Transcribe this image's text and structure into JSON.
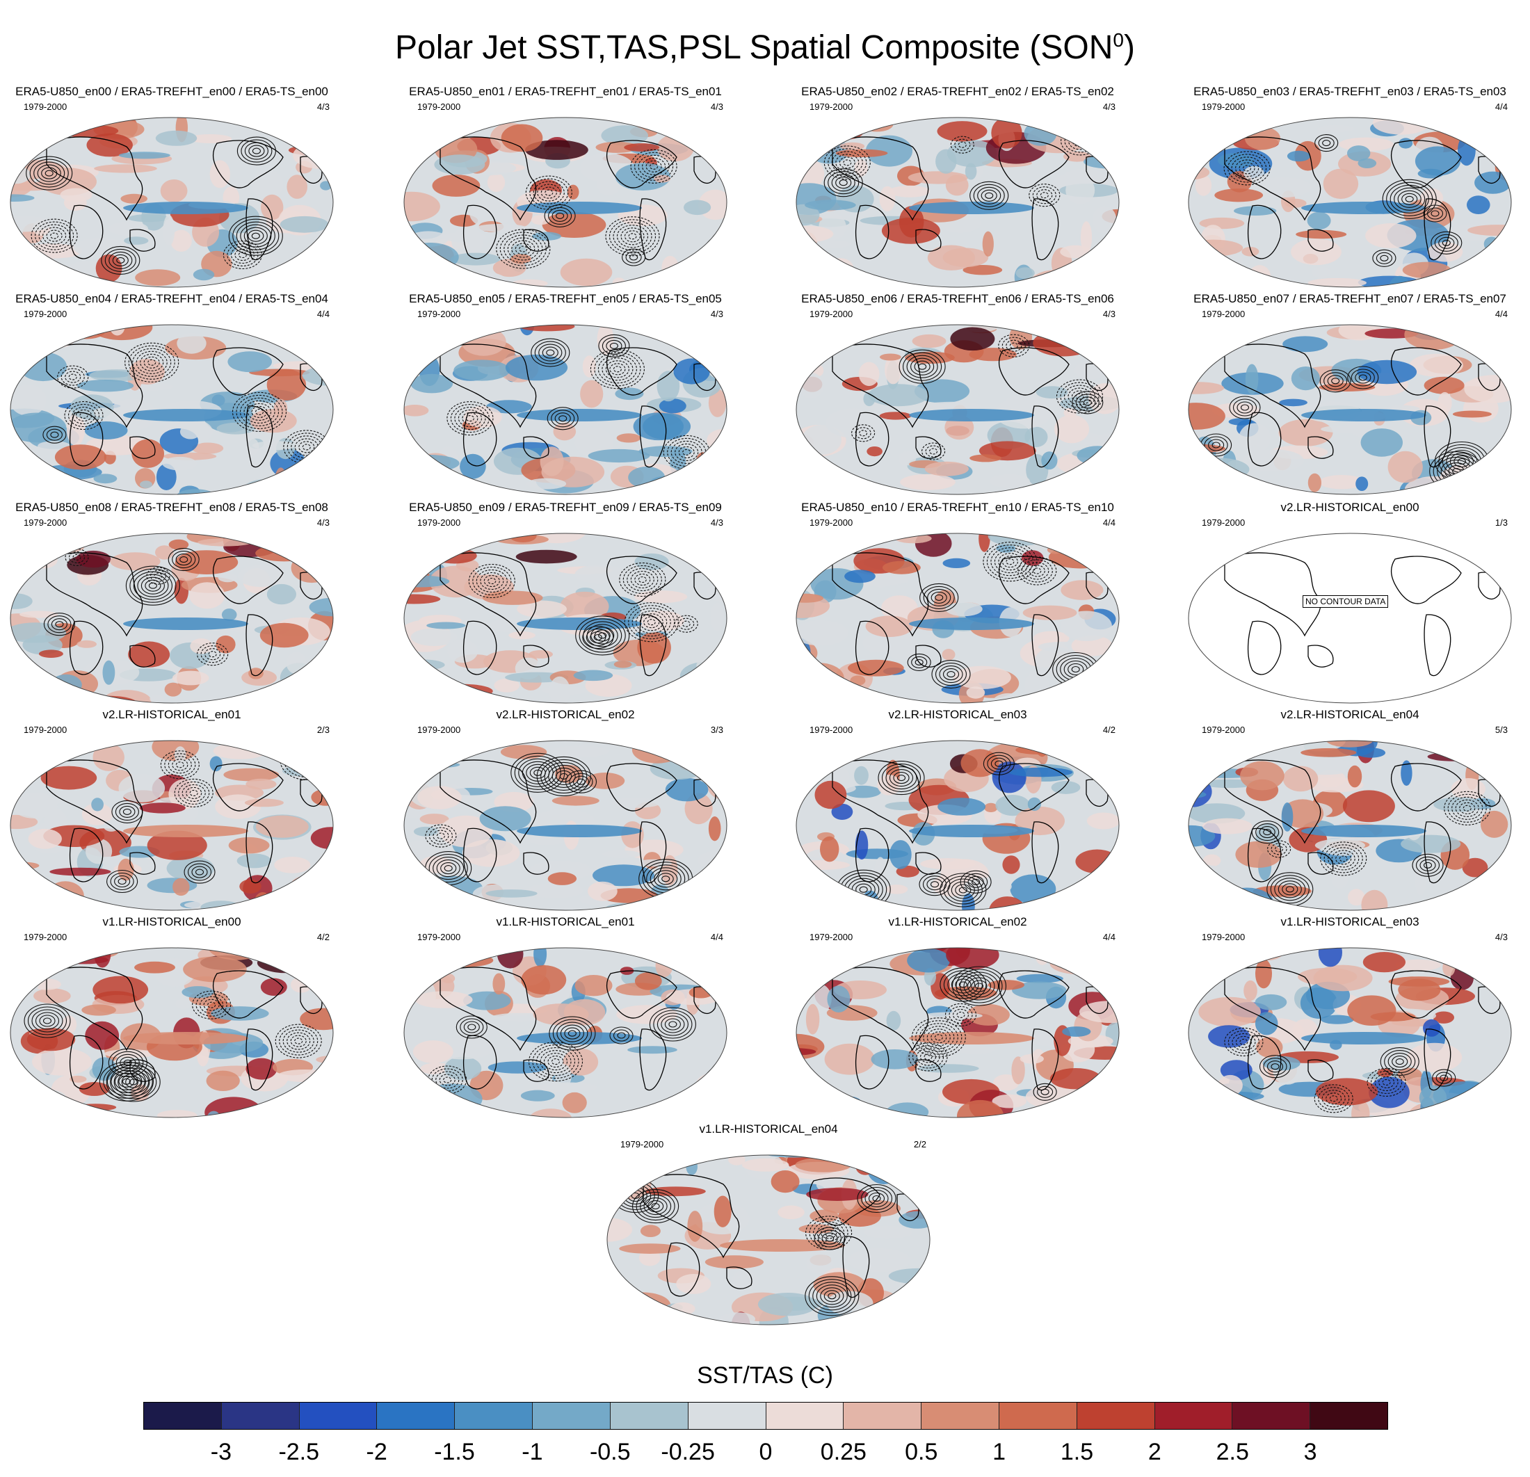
{
  "title": {
    "main": "Polar Jet SST,TAS,PSL Spatial Composite (SON",
    "sup": "0",
    "close": ")"
  },
  "panels": [
    {
      "label": "ERA5-U850_en00 / ERA5-TREFHT_en00 / ERA5-TS_en00",
      "years": "1979-2000",
      "ratio": "4/3",
      "scheme": "era",
      "seed": 11
    },
    {
      "label": "ERA5-U850_en01 / ERA5-TREFHT_en01 / ERA5-TS_en01",
      "years": "1979-2000",
      "ratio": "4/3",
      "scheme": "era",
      "seed": 12
    },
    {
      "label": "ERA5-U850_en02 / ERA5-TREFHT_en02 / ERA5-TS_en02",
      "years": "1979-2000",
      "ratio": "4/3",
      "scheme": "era",
      "seed": 13
    },
    {
      "label": "ERA5-U850_en03 / ERA5-TREFHT_en03 / ERA5-TS_en03",
      "years": "1979-2000",
      "ratio": "4/4",
      "scheme": "era-cold",
      "seed": 14
    },
    {
      "label": "ERA5-U850_en04 / ERA5-TREFHT_en04 / ERA5-TS_en04",
      "years": "1979-2000",
      "ratio": "4/4",
      "scheme": "era-cold",
      "seed": 15
    },
    {
      "label": "ERA5-U850_en05 / ERA5-TREFHT_en05 / ERA5-TS_en05",
      "years": "1979-2000",
      "ratio": "4/3",
      "scheme": "era-cold",
      "seed": 16
    },
    {
      "label": "ERA5-U850_en06 / ERA5-TREFHT_en06 / ERA5-TS_en06",
      "years": "1979-2000",
      "ratio": "4/3",
      "scheme": "era",
      "seed": 17
    },
    {
      "label": "ERA5-U850_en07 / ERA5-TREFHT_en07 / ERA5-TS_en07",
      "years": "1979-2000",
      "ratio": "4/4",
      "scheme": "era-cold",
      "seed": 18
    },
    {
      "label": "ERA5-U850_en08 / ERA5-TREFHT_en08 / ERA5-TS_en08",
      "years": "1979-2000",
      "ratio": "4/3",
      "scheme": "era",
      "seed": 19
    },
    {
      "label": "ERA5-U850_en09 / ERA5-TREFHT_en09 / ERA5-TS_en09",
      "years": "1979-2000",
      "ratio": "4/3",
      "scheme": "era",
      "seed": 20
    },
    {
      "label": "ERA5-U850_en10 / ERA5-TREFHT_en10 / ERA5-TS_en10",
      "years": "1979-2000",
      "ratio": "4/4",
      "scheme": "era-cold",
      "seed": 21
    },
    {
      "label": "v2.LR-HISTORICAL_en00",
      "years": "1979-2000",
      "ratio": "1/3",
      "scheme": "empty",
      "seed": 22,
      "nodata": "NO CONTOUR DATA"
    },
    {
      "label": "v2.LR-HISTORICAL_en01",
      "years": "1979-2000",
      "ratio": "2/3",
      "scheme": "warm",
      "seed": 23
    },
    {
      "label": "v2.LR-HISTORICAL_en02",
      "years": "1979-2000",
      "ratio": "3/3",
      "scheme": "mixed",
      "seed": 24
    },
    {
      "label": "v2.LR-HISTORICAL_en03",
      "years": "1979-2000",
      "ratio": "4/2",
      "scheme": "cold",
      "seed": 25
    },
    {
      "label": "v2.LR-HISTORICAL_en04",
      "years": "1979-2000",
      "ratio": "5/3",
      "scheme": "cold",
      "seed": 26
    },
    {
      "label": "v1.LR-HISTORICAL_en00",
      "years": "1979-2000",
      "ratio": "4/2",
      "scheme": "warm",
      "seed": 27
    },
    {
      "label": "v1.LR-HISTORICAL_en01",
      "years": "1979-2000",
      "ratio": "4/4",
      "scheme": "mixed",
      "seed": 28
    },
    {
      "label": "v1.LR-HISTORICAL_en02",
      "years": "1979-2000",
      "ratio": "4/4",
      "scheme": "warm",
      "seed": 29
    },
    {
      "label": "v1.LR-HISTORICAL_en03",
      "years": "1979-2000",
      "ratio": "4/3",
      "scheme": "cold",
      "seed": 30
    },
    {
      "label": "v1.LR-HISTORICAL_en04",
      "years": "1979-2000",
      "ratio": "2/2",
      "scheme": "warm",
      "seed": 31
    }
  ],
  "colorbar": {
    "label": "SST/TAS (C)",
    "colors": [
      "#1b1a4a",
      "#2a3585",
      "#2350c0",
      "#2a74c3",
      "#4a8fc3",
      "#74a9c8",
      "#a8c3cf",
      "#d9dee2",
      "#ecdcd8",
      "#e3b5a8",
      "#d88d74",
      "#cf6a4e",
      "#be4130",
      "#a01e2a",
      "#6e1024",
      "#400814"
    ],
    "ticks": [
      "-3",
      "-2.5",
      "-2",
      "-1.5",
      "-1",
      "-0.5",
      "-0.25",
      "0",
      "0.25",
      "0.5",
      "1",
      "1.5",
      "2",
      "2.5",
      "3"
    ]
  }
}
